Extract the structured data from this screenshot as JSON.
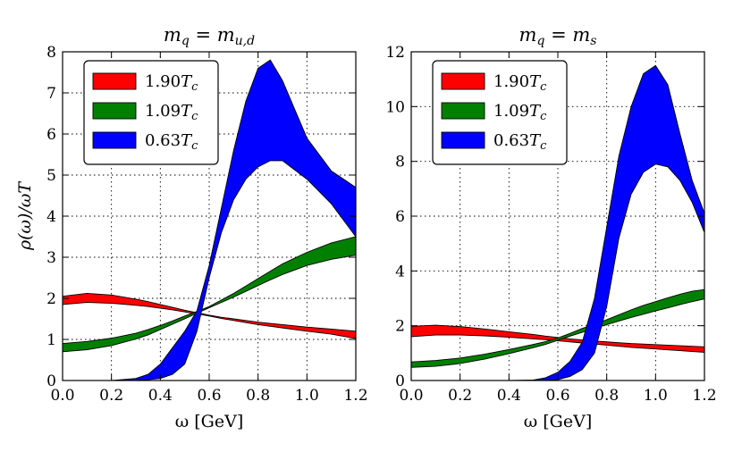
{
  "chart_data": [
    {
      "type": "area",
      "title": "m_q = m_{u,d}",
      "title_main": "m",
      "title_sub": "q",
      "title_rhs_main": "m",
      "title_rhs_sub": "u,d",
      "xlabel": "ω [GeV]",
      "ylabel": "ρ(ω)/ωT",
      "xlim": [
        0.0,
        1.2
      ],
      "ylim": [
        0,
        8
      ],
      "xticks": [
        "0.0",
        "0.2",
        "0.4",
        "0.6",
        "0.8",
        "1.0",
        "1.2"
      ],
      "yticks": [
        "0",
        "1",
        "2",
        "3",
        "4",
        "5",
        "6",
        "7",
        "8"
      ],
      "legend_position": "top-left",
      "grid": true,
      "x": [
        0.0,
        0.1,
        0.2,
        0.3,
        0.35,
        0.4,
        0.45,
        0.5,
        0.55,
        0.6,
        0.65,
        0.7,
        0.75,
        0.8,
        0.85,
        0.9,
        1.0,
        1.1,
        1.2
      ],
      "series": [
        {
          "name": "1.90T_c",
          "label_number": "1.90",
          "label_symbol": "T",
          "label_sub": "c",
          "color": "#ff0000",
          "upper": [
            2.05,
            2.12,
            2.08,
            1.98,
            1.92,
            1.85,
            1.78,
            1.71,
            1.65,
            1.59,
            1.54,
            1.5,
            1.46,
            1.42,
            1.39,
            1.36,
            1.3,
            1.25,
            1.2
          ],
          "lower": [
            1.85,
            1.9,
            1.88,
            1.83,
            1.8,
            1.76,
            1.72,
            1.67,
            1.62,
            1.57,
            1.51,
            1.46,
            1.41,
            1.36,
            1.32,
            1.28,
            1.2,
            1.13,
            1.02
          ]
        },
        {
          "name": "1.09T_c",
          "label_number": "1.09",
          "label_symbol": "T",
          "label_sub": "c",
          "color": "#008000",
          "upper": [
            0.9,
            0.95,
            1.03,
            1.15,
            1.24,
            1.34,
            1.45,
            1.57,
            1.68,
            1.8,
            1.96,
            2.12,
            2.3,
            2.48,
            2.66,
            2.84,
            3.12,
            3.35,
            3.5
          ],
          "lower": [
            0.7,
            0.75,
            0.85,
            1.01,
            1.11,
            1.24,
            1.37,
            1.5,
            1.64,
            1.77,
            1.9,
            2.03,
            2.17,
            2.31,
            2.45,
            2.58,
            2.8,
            2.95,
            3.05
          ]
        },
        {
          "name": "0.63T_c",
          "label_number": "0.63",
          "label_symbol": "T",
          "label_sub": "c",
          "color": "#0000ff",
          "upper": [
            0.0,
            0.0,
            0.0,
            0.05,
            0.15,
            0.4,
            0.8,
            1.2,
            1.7,
            2.8,
            4.2,
            5.6,
            6.8,
            7.6,
            7.8,
            7.3,
            5.9,
            5.1,
            4.7
          ],
          "lower": [
            0.0,
            0.0,
            0.0,
            0.0,
            0.02,
            0.05,
            0.15,
            0.4,
            1.2,
            2.5,
            3.6,
            4.4,
            4.9,
            5.2,
            5.35,
            5.35,
            4.9,
            4.3,
            3.5
          ]
        }
      ]
    },
    {
      "type": "area",
      "title": "m_q = m_s",
      "title_main": "m",
      "title_sub": "q",
      "title_rhs_main": "m",
      "title_rhs_sub": "s",
      "xlabel": "ω [GeV]",
      "ylabel": "",
      "xlim": [
        0.0,
        1.2
      ],
      "ylim": [
        0,
        12
      ],
      "xticks": [
        "0.0",
        "0.2",
        "0.4",
        "0.6",
        "0.8",
        "1.0",
        "1.2"
      ],
      "yticks": [
        "0",
        "2",
        "4",
        "6",
        "8",
        "10",
        "12"
      ],
      "legend_position": "top-left",
      "grid": true,
      "x": [
        0.0,
        0.1,
        0.2,
        0.3,
        0.4,
        0.5,
        0.55,
        0.6,
        0.65,
        0.7,
        0.75,
        0.8,
        0.85,
        0.9,
        0.95,
        1.0,
        1.05,
        1.1,
        1.15,
        1.2
      ],
      "series": [
        {
          "name": "1.90T_c",
          "label_number": "1.90",
          "label_symbol": "T",
          "label_sub": "c",
          "color": "#ff0000",
          "upper": [
            1.98,
            2.02,
            1.97,
            1.88,
            1.78,
            1.68,
            1.62,
            1.57,
            1.52,
            1.48,
            1.44,
            1.41,
            1.38,
            1.35,
            1.33,
            1.31,
            1.29,
            1.27,
            1.25,
            1.23
          ],
          "lower": [
            1.6,
            1.66,
            1.66,
            1.63,
            1.58,
            1.52,
            1.49,
            1.45,
            1.41,
            1.37,
            1.33,
            1.29,
            1.25,
            1.21,
            1.18,
            1.15,
            1.12,
            1.09,
            1.06,
            1.03
          ]
        },
        {
          "name": "1.09T_c",
          "label_number": "1.09",
          "label_symbol": "T",
          "label_sub": "c",
          "color": "#008000",
          "upper": [
            0.68,
            0.73,
            0.82,
            0.96,
            1.13,
            1.32,
            1.42,
            1.55,
            1.72,
            1.9,
            2.05,
            2.22,
            2.4,
            2.58,
            2.74,
            2.88,
            3.02,
            3.15,
            3.26,
            3.32
          ],
          "lower": [
            0.48,
            0.52,
            0.62,
            0.78,
            0.98,
            1.2,
            1.32,
            1.47,
            1.62,
            1.76,
            1.9,
            2.04,
            2.17,
            2.3,
            2.42,
            2.54,
            2.65,
            2.77,
            2.88,
            2.98
          ]
        },
        {
          "name": "0.63T_c",
          "label_number": "0.63",
          "label_symbol": "T",
          "label_sub": "c",
          "color": "#0000ff",
          "upper": [
            0.0,
            0.0,
            0.0,
            0.0,
            0.0,
            0.02,
            0.1,
            0.3,
            0.7,
            1.4,
            3.0,
            5.6,
            8.2,
            10.0,
            11.2,
            11.5,
            10.8,
            9.0,
            7.3,
            6.1
          ],
          "lower": [
            0.0,
            0.0,
            0.0,
            0.0,
            0.0,
            0.0,
            0.0,
            0.03,
            0.15,
            0.4,
            1.0,
            2.7,
            5.2,
            6.8,
            7.6,
            7.9,
            7.8,
            7.3,
            6.5,
            5.4
          ]
        }
      ]
    }
  ]
}
